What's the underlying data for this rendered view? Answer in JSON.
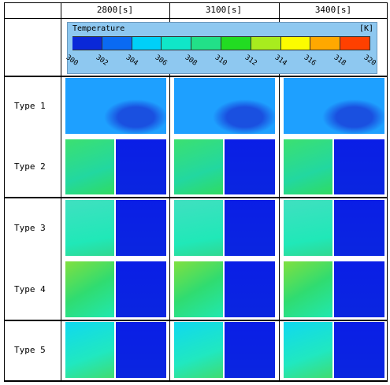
{
  "header": [
    "2800[s]",
    "3100[s]",
    "3400[s]"
  ],
  "colorbar": {
    "title": "Temperature",
    "unit": "[K]",
    "ticks": [
      300,
      302,
      304,
      306,
      308,
      310,
      312,
      314,
      316,
      318,
      320
    ],
    "colors": [
      "#0a28d8",
      "#0a6af2",
      "#00d0f8",
      "#10e6c8",
      "#22e088",
      "#22dc22",
      "#a8ec1e",
      "#fcfc00",
      "#ffa800",
      "#ff4000"
    ]
  },
  "rows": [
    "Type 1",
    "Type 2",
    "Type 3",
    "Type 4",
    "Type 5"
  ]
}
